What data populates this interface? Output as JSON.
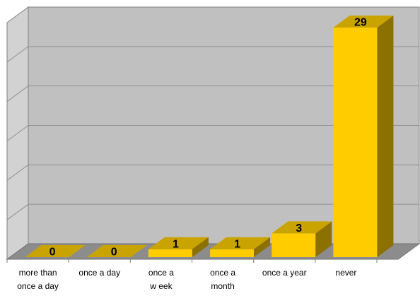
{
  "chart_data": {
    "type": "bar",
    "style": "3d-column",
    "categories": [
      [
        "more than",
        "once a day"
      ],
      [
        "once a day"
      ],
      [
        "once a",
        "w eek"
      ],
      [
        "once a",
        "month"
      ],
      [
        "once a year"
      ],
      [
        "never"
      ]
    ],
    "values": [
      0,
      0,
      1,
      1,
      3,
      29
    ],
    "ylim": [
      0,
      29
    ],
    "grid": true,
    "colors": {
      "bar_front": "#FFCC00",
      "bar_top": "#C9A400",
      "bar_side": "#8C7000",
      "wall": "#C0C0C0",
      "wall_side": "#D2D2D2",
      "floor": "#8C8C8C",
      "grid": "#909090"
    }
  }
}
